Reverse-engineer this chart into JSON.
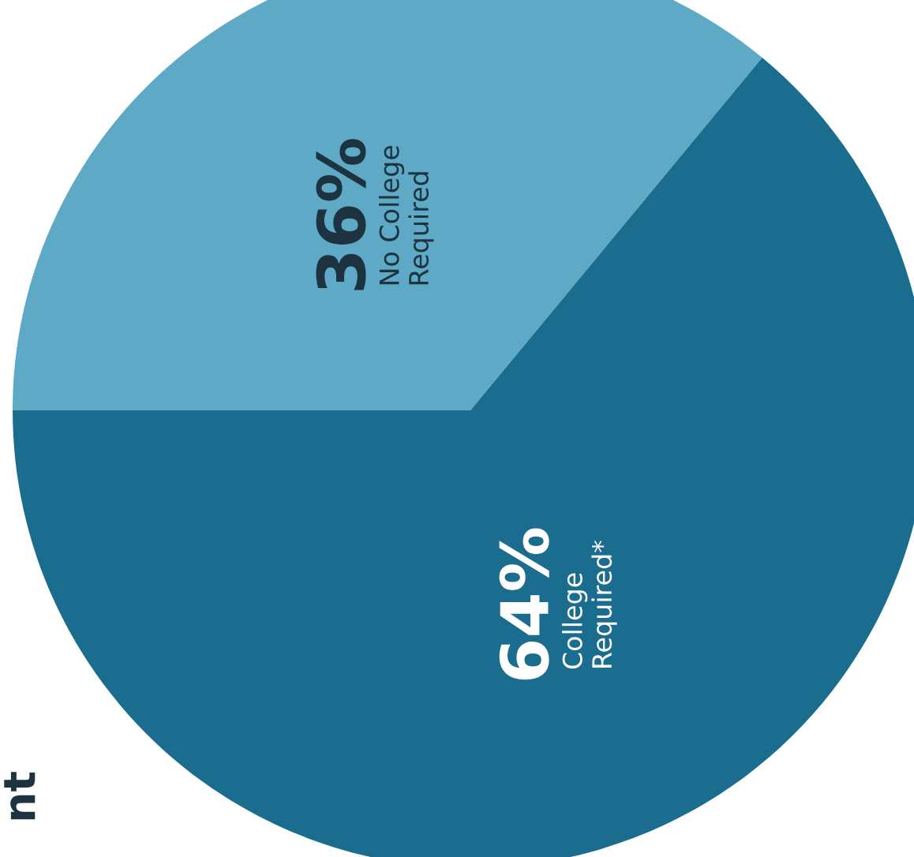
{
  "chart_data": {
    "type": "pie",
    "categories": [
      "No College\nRequired",
      "College\nRequired*"
    ],
    "values": [
      36,
      64
    ],
    "colors": [
      "#5eaac6",
      "#1b6d8f"
    ],
    "value_labels": [
      "36%",
      "64%"
    ],
    "annotations": [
      "nt"
    ]
  }
}
